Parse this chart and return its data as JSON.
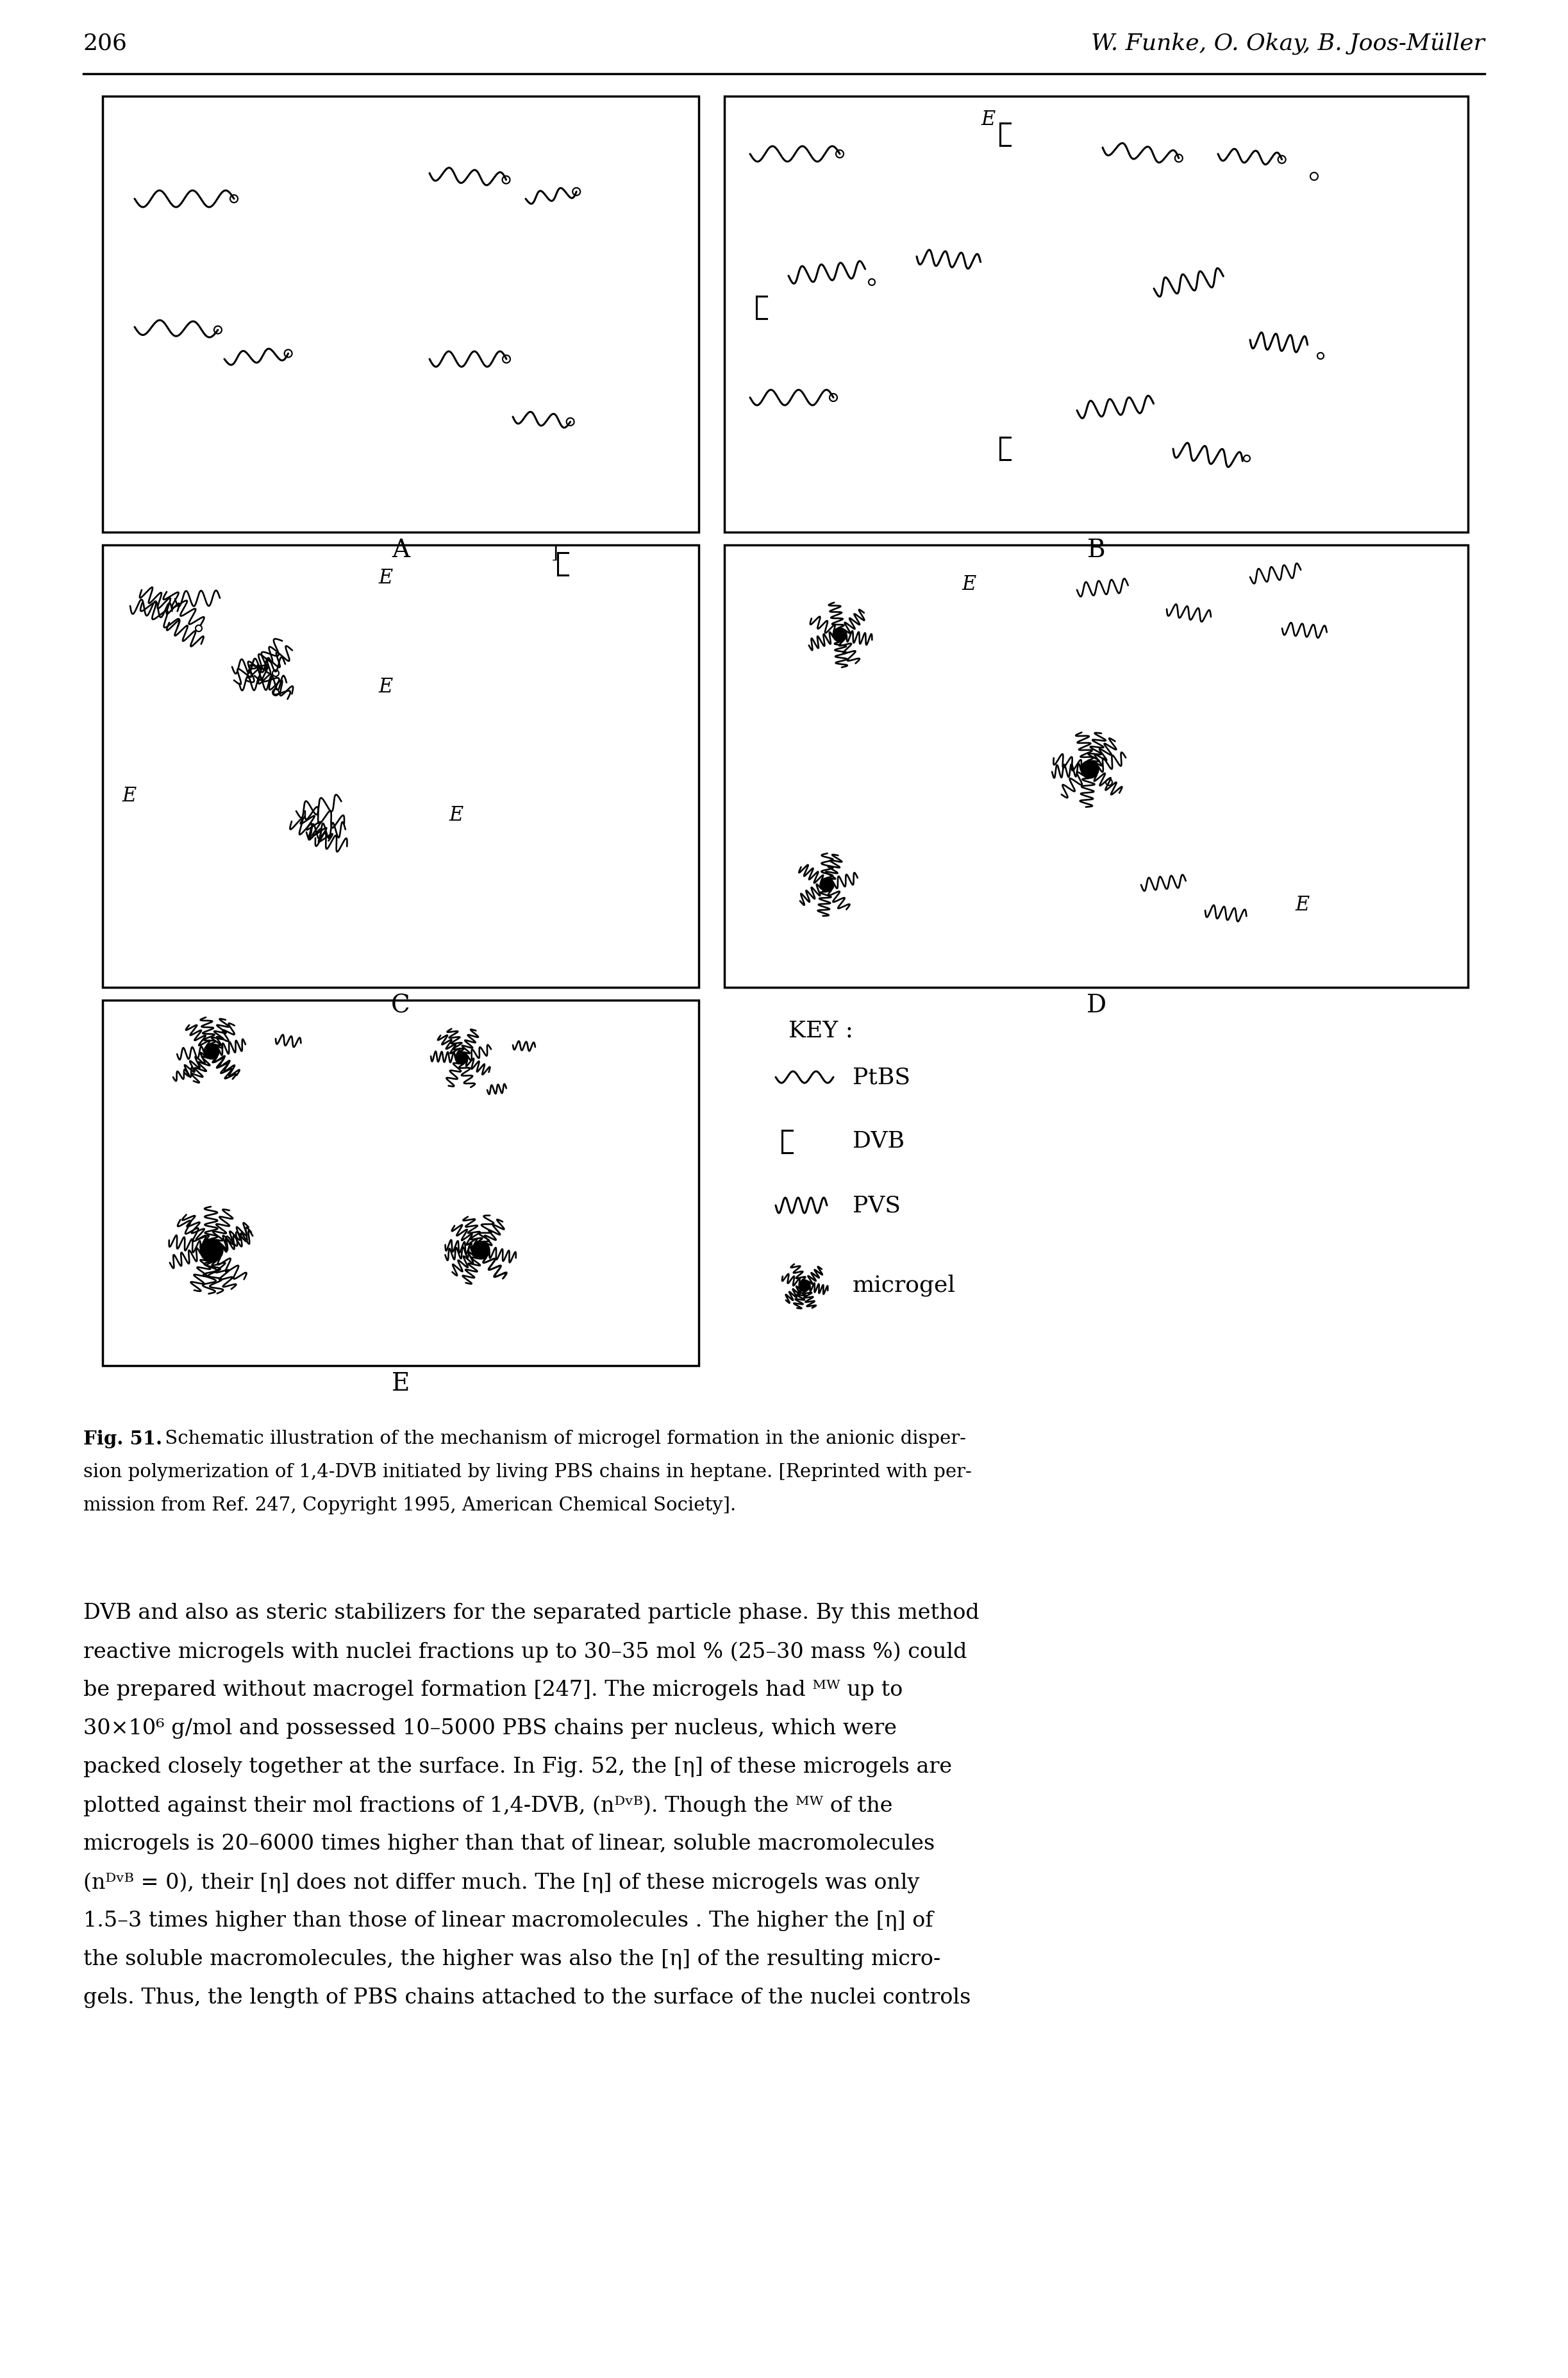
{
  "page_number": "206",
  "header": "W. Funke, O. Okay, B. Joos-Müller",
  "fig_label": "Fig. 51.",
  "fig_caption_line1": " Schematic illustration of the mechanism of microgel formation in the anionic disper-",
  "fig_caption_line2": "sion polymerization of 1,4-DVB initiated by living PBS chains in heptane. [Reprinted with per-",
  "fig_caption_line3": "mission from Ref. 247, Copyright 1995, American Chemical Society].",
  "panel_labels": [
    "A",
    "B",
    "C",
    "D",
    "E"
  ],
  "key_label": "KEY :",
  "key_items": [
    "PtBS",
    "DVB",
    "PVS",
    "microgel"
  ],
  "body_text_lines": [
    "DVB and also as steric stabilizers for the separated particle phase. By this method",
    "reactive microgels with nuclei fractions up to 30–35 mol % (25–30 mass %) could",
    "be prepared without macrogel formation [247]. The microgels had ᴹᵂ up to",
    "30×10⁶ g/mol and possessed 10–5000 PBS chains per nucleus, which were",
    "packed closely together at the surface. In Fig. 52, the [η] of these microgels are",
    "plotted against their mol fractions of 1,4-DVB, (nᴰᵛᴮ). Though the ᴹᵂ of the",
    "microgels is 20–6000 times higher than that of linear, soluble macromolecules",
    "(nᴰᵛᴮ = 0), their [η] does not differ much. The [η] of these microgels was only",
    "1.5–3 times higher than those of linear macromolecules . The higher the [η] of",
    "the soluble macromolecules, the higher was also the [η] of the resulting micro-",
    "gels. Thus, the length of PBS chains attached to the surface of the nuclei controls"
  ],
  "background_color": "#ffffff",
  "fig_width": 24.46,
  "fig_height": 37.09
}
